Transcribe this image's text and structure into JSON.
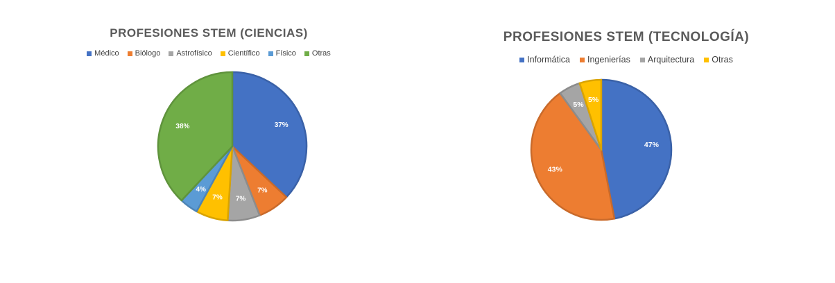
{
  "chart_data": [
    {
      "type": "pie",
      "title": "PROFESIONES STEM (CIENCIAS)",
      "legend_position": "top",
      "start_angle_deg": 0,
      "slices": [
        {
          "label": "Médico",
          "value": 37,
          "value_label": "37%",
          "color": "#4472C4"
        },
        {
          "label": "Biólogo",
          "value": 7,
          "value_label": "7%",
          "color": "#ED7D31"
        },
        {
          "label": "Astrofísico",
          "value": 7,
          "value_label": "7%",
          "color": "#A5A5A5"
        },
        {
          "label": "Científico",
          "value": 7,
          "value_label": "7%",
          "color": "#FFC000"
        },
        {
          "label": "Físico",
          "value": 4,
          "value_label": "4%",
          "color": "#5B9BD5"
        },
        {
          "label": "Otras",
          "value": 38,
          "value_label": "38%",
          "color": "#70AD47"
        }
      ]
    },
    {
      "type": "pie",
      "title": "PROFESIONES STEM (TECNOLOGÍA)",
      "legend_position": "top",
      "start_angle_deg": 0,
      "slices": [
        {
          "label": "Informática",
          "value": 47,
          "value_label": "47%",
          "color": "#4472C4"
        },
        {
          "label": "Ingenierías",
          "value": 43,
          "value_label": "43%",
          "color": "#ED7D31"
        },
        {
          "label": "Arquitectura",
          "value": 5,
          "value_label": "5%",
          "color": "#A5A5A5"
        },
        {
          "label": "Otras",
          "value": 5,
          "value_label": "5%",
          "color": "#FFC000"
        }
      ]
    }
  ]
}
